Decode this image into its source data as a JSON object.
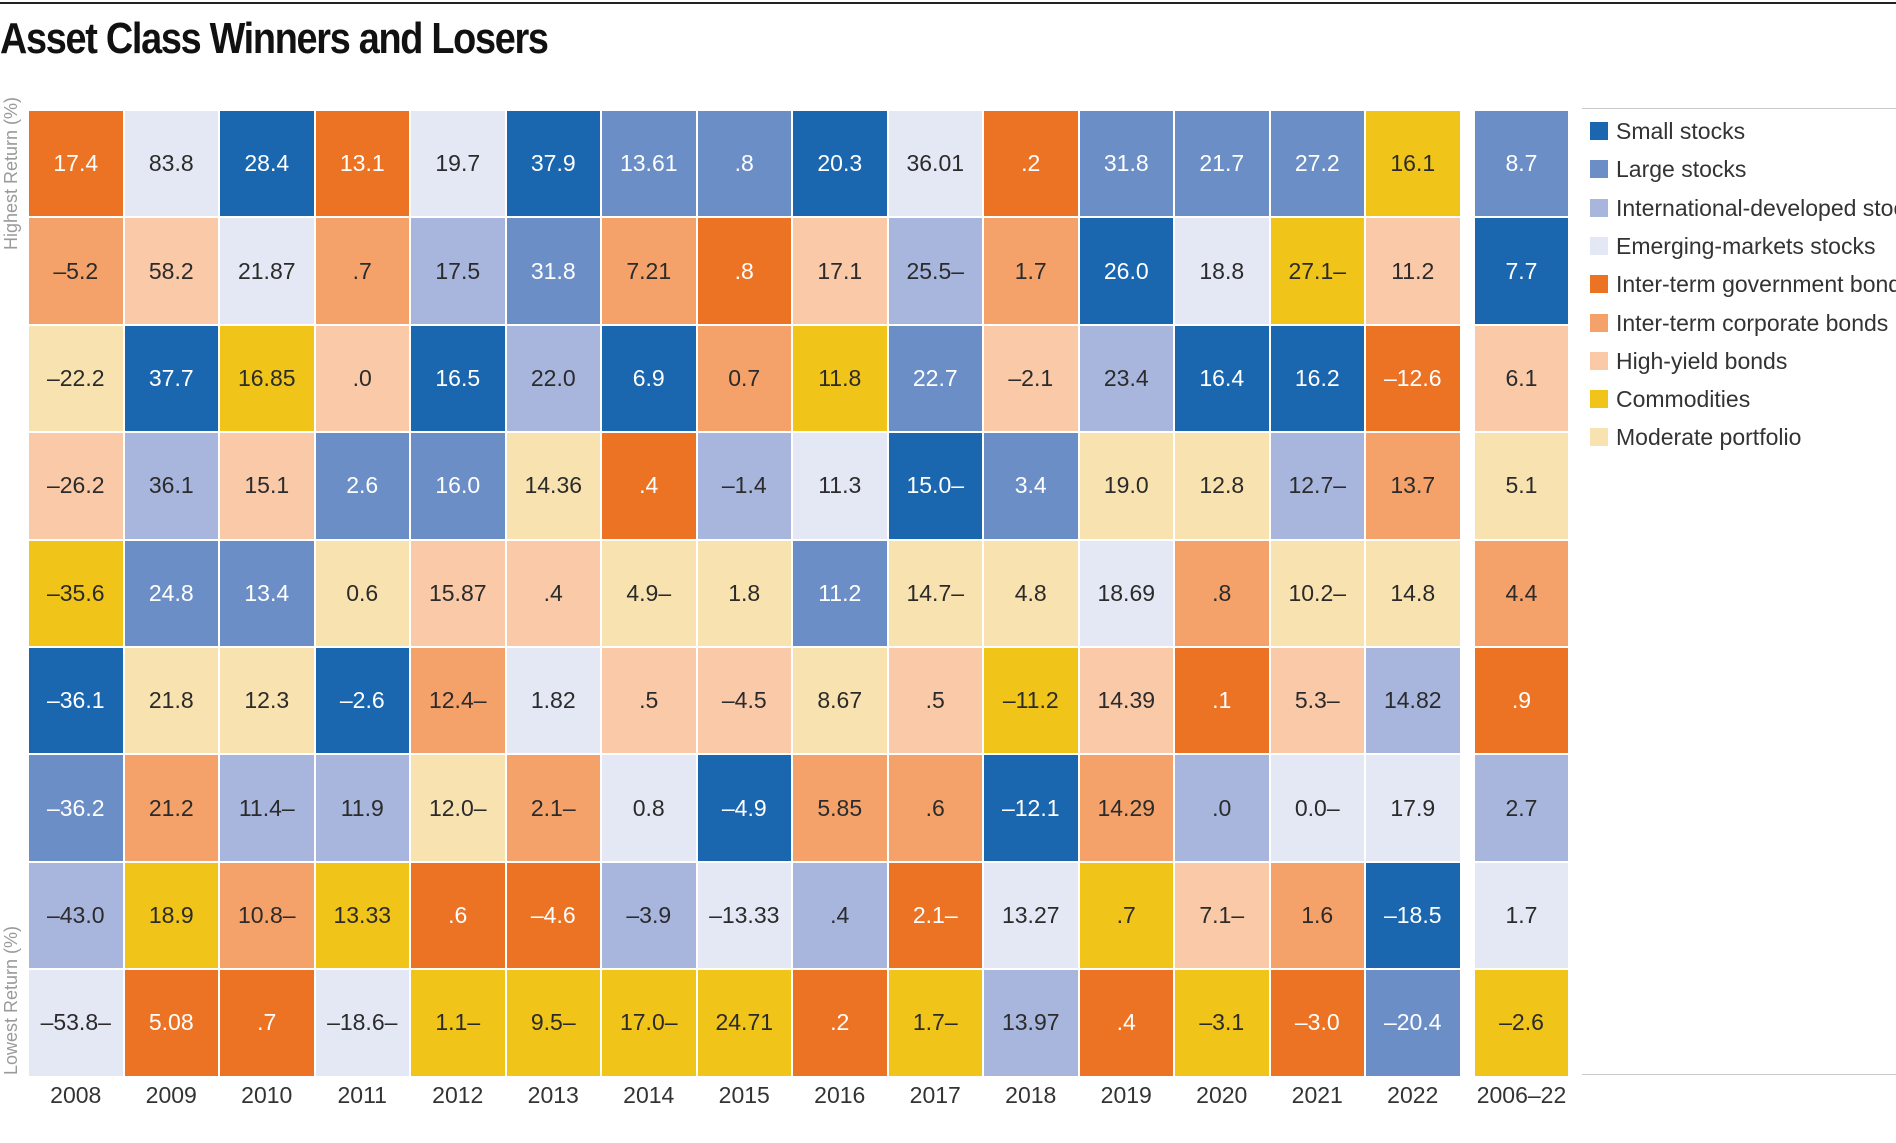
{
  "title": "Asset Class Winners and Losers",
  "y_labels": {
    "top": "Highest Return (%)",
    "bottom": "Lowest Return (%)"
  },
  "colors": {
    "small": "#1a67b0",
    "large": "#6c8ec7",
    "intl": "#a8b6de",
    "em": "#e3e8f4",
    "govt": "#ec7324",
    "corp": "#f4a26a",
    "hy": "#f9c9a8",
    "comm": "#f0c419",
    "mod": "#f8e3b0"
  },
  "legend": [
    {
      "key": "small",
      "label": "Small stocks"
    },
    {
      "key": "large",
      "label": "Large stocks"
    },
    {
      "key": "intl",
      "label": "International-developed stocks"
    },
    {
      "key": "em",
      "label": "Emerging-markets stocks"
    },
    {
      "key": "govt",
      "label": "Inter-term government bonds"
    },
    {
      "key": "corp",
      "label": "Inter-term corporate bonds"
    },
    {
      "key": "hy",
      "label": "High-yield bonds"
    },
    {
      "key": "comm",
      "label": "Commodities"
    },
    {
      "key": "mod",
      "label": "Moderate portfolio"
    }
  ],
  "chart_data": {
    "type": "table",
    "legend_position": "right",
    "columns": [
      {
        "label": "2008",
        "cells": [
          [
            "17.4",
            "govt"
          ],
          [
            "–5.2",
            "corp"
          ],
          [
            "–22.2",
            "mod"
          ],
          [
            "–26.2",
            "hy"
          ],
          [
            "–35.6",
            "comm"
          ],
          [
            "–36.1",
            "small"
          ],
          [
            "–36.2",
            "large"
          ],
          [
            "–43.0",
            "intl"
          ],
          [
            "–53.8–",
            "em"
          ]
        ]
      },
      {
        "label": "2009",
        "cells": [
          [
            "83.8",
            "em"
          ],
          [
            "58.2",
            "hy"
          ],
          [
            "37.7",
            "small"
          ],
          [
            "36.1",
            "intl"
          ],
          [
            "24.8",
            "large"
          ],
          [
            "21.8",
            "mod"
          ],
          [
            "21.2",
            "corp"
          ],
          [
            "18.9",
            "comm"
          ],
          [
            "5.08",
            "govt"
          ]
        ]
      },
      {
        "label": "2010",
        "cells": [
          [
            "28.4",
            "small"
          ],
          [
            "21.87",
            "em"
          ],
          [
            "16.85",
            "comm"
          ],
          [
            "15.1",
            "hy"
          ],
          [
            "13.4",
            "large"
          ],
          [
            "12.3",
            "mod"
          ],
          [
            "11.4–",
            "intl"
          ],
          [
            "10.8–",
            "corp"
          ],
          [
            ".7",
            "govt"
          ]
        ]
      },
      {
        "label": "2011",
        "cells": [
          [
            "13.1",
            "govt"
          ],
          [
            ".7",
            "corp"
          ],
          [
            ".0",
            "hy"
          ],
          [
            "2.6",
            "large"
          ],
          [
            "0.6",
            "mod"
          ],
          [
            "–2.6",
            "small"
          ],
          [
            "11.9",
            "intl"
          ],
          [
            "13.33",
            "comm"
          ],
          [
            "–18.6–",
            "em"
          ]
        ]
      },
      {
        "label": "2012",
        "cells": [
          [
            "19.7",
            "em"
          ],
          [
            "17.5",
            "intl"
          ],
          [
            "16.5",
            "small"
          ],
          [
            "16.0",
            "large"
          ],
          [
            "15.87",
            "hy"
          ],
          [
            "12.4–",
            "corp"
          ],
          [
            "12.0–",
            "mod"
          ],
          [
            ".6",
            "govt"
          ],
          [
            "1.1–",
            "comm"
          ]
        ]
      },
      {
        "label": "2013",
        "cells": [
          [
            "37.9",
            "small"
          ],
          [
            "31.8",
            "large"
          ],
          [
            "22.0",
            "intl"
          ],
          [
            "14.36",
            "mod"
          ],
          [
            ".4",
            "hy"
          ],
          [
            "1.82",
            "em"
          ],
          [
            "2.1–",
            "corp"
          ],
          [
            "–4.6",
            "govt"
          ],
          [
            "9.5–",
            "comm"
          ]
        ]
      },
      {
        "label": "2014",
        "cells": [
          [
            "13.61",
            "large"
          ],
          [
            "7.21",
            "corp"
          ],
          [
            "6.9",
            "small"
          ],
          [
            ".4",
            "govt"
          ],
          [
            "4.9–",
            "mod"
          ],
          [
            ".5",
            "hy"
          ],
          [
            "0.8",
            "em"
          ],
          [
            "–3.9",
            "intl"
          ],
          [
            "17.0–",
            "comm"
          ]
        ]
      },
      {
        "label": "2015",
        "cells": [
          [
            ".8",
            "large"
          ],
          [
            ".8",
            "govt"
          ],
          [
            "0.7",
            "corp"
          ],
          [
            "–1.4",
            "intl"
          ],
          [
            "1.8",
            "mod"
          ],
          [
            "–4.5",
            "hy"
          ],
          [
            "–4.9",
            "small"
          ],
          [
            "–13.33",
            "em"
          ],
          [
            "24.71",
            "comm"
          ]
        ]
      },
      {
        "label": "2016",
        "cells": [
          [
            "20.3",
            "small"
          ],
          [
            "17.1",
            "hy"
          ],
          [
            "11.8",
            "comm"
          ],
          [
            "11.3",
            "em"
          ],
          [
            "11.2",
            "large"
          ],
          [
            "8.67",
            "mod"
          ],
          [
            "5.85",
            "corp"
          ],
          [
            ".4",
            "intl"
          ],
          [
            ".2",
            "govt"
          ]
        ]
      },
      {
        "label": "2017",
        "cells": [
          [
            "36.01",
            "em"
          ],
          [
            "25.5–",
            "intl"
          ],
          [
            "22.7",
            "large"
          ],
          [
            "15.0–",
            "small"
          ],
          [
            "14.7–",
            "mod"
          ],
          [
            ".5",
            "hy"
          ],
          [
            ".6",
            "corp"
          ],
          [
            "2.1–",
            "govt"
          ],
          [
            "1.7–",
            "comm"
          ]
        ]
      },
      {
        "label": "2018",
        "cells": [
          [
            ".2",
            "govt"
          ],
          [
            "1.7",
            "corp"
          ],
          [
            "–2.1",
            "hy"
          ],
          [
            "3.4",
            "large"
          ],
          [
            "4.8",
            "mod"
          ],
          [
            "–11.2",
            "comm"
          ],
          [
            "–12.1",
            "small"
          ],
          [
            "13.27",
            "em"
          ],
          [
            "13.97",
            "intl"
          ]
        ]
      },
      {
        "label": "2019",
        "cells": [
          [
            "31.8",
            "large"
          ],
          [
            "26.0",
            "small"
          ],
          [
            "23.4",
            "intl"
          ],
          [
            "19.0",
            "mod"
          ],
          [
            "18.69",
            "em"
          ],
          [
            "14.39",
            "hy"
          ],
          [
            "14.29",
            "corp"
          ],
          [
            ".7",
            "comm"
          ],
          [
            ".4",
            "govt"
          ]
        ]
      },
      {
        "label": "2020",
        "cells": [
          [
            "21.7",
            "large"
          ],
          [
            "18.8",
            "em"
          ],
          [
            "16.4",
            "small"
          ],
          [
            "12.8",
            "mod"
          ],
          [
            ".8",
            "corp"
          ],
          [
            ".1",
            "govt"
          ],
          [
            ".0",
            "intl"
          ],
          [
            "7.1–",
            "hy"
          ],
          [
            "–3.1",
            "comm"
          ]
        ]
      },
      {
        "label": "2021",
        "cells": [
          [
            "27.2",
            "large"
          ],
          [
            "27.1–",
            "comm"
          ],
          [
            "16.2",
            "small"
          ],
          [
            "12.7–",
            "intl"
          ],
          [
            "10.2–",
            "mod"
          ],
          [
            "5.3–",
            "hy"
          ],
          [
            "0.0–",
            "em"
          ],
          [
            "1.6",
            "corp"
          ],
          [
            "–3.0",
            "govt"
          ]
        ]
      },
      {
        "label": "2022",
        "cells": [
          [
            "16.1",
            "comm"
          ],
          [
            "11.2",
            "hy"
          ],
          [
            "–12.6",
            "govt"
          ],
          [
            "13.7",
            "corp"
          ],
          [
            "14.8",
            "mod"
          ],
          [
            "14.82",
            "intl"
          ],
          [
            "17.9",
            "em"
          ],
          [
            "–18.5",
            "small"
          ],
          [
            "–20.4",
            "large"
          ]
        ]
      }
    ],
    "summary_column": {
      "label": "2006–22",
      "cells": [
        [
          "8.7",
          "large"
        ],
        [
          "7.7",
          "small"
        ],
        [
          "6.1",
          "hy"
        ],
        [
          "5.1",
          "mod"
        ],
        [
          "4.4",
          "corp"
        ],
        [
          ".9",
          "govt"
        ],
        [
          "2.7",
          "intl"
        ],
        [
          "1.7",
          "em"
        ],
        [
          "–2.6",
          "comm"
        ]
      ]
    }
  }
}
